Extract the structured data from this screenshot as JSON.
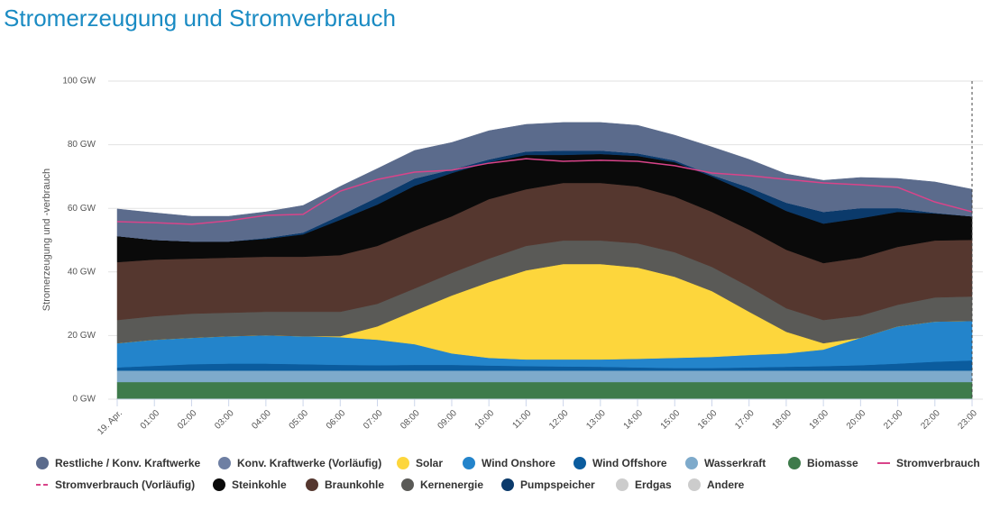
{
  "chart_data": {
    "type": "stacked_area",
    "title": "Stromerzeugung und Stromverbrauch",
    "y_label": "Stromerzeugung und -verbrauch",
    "categories": [
      "19. Apr.",
      "01:00",
      "02:00",
      "03:00",
      "04:00",
      "05:00",
      "06:00",
      "07:00",
      "08:00",
      "09:00",
      "10:00",
      "11:00",
      "12:00",
      "13:00",
      "14:00",
      "15:00",
      "16:00",
      "17:00",
      "18:00",
      "19:00",
      "20:00",
      "21:00",
      "22:00",
      "23:00"
    ],
    "ylim": [
      0,
      100
    ],
    "yticks": [
      {
        "value": 0,
        "label": "0 GW"
      },
      {
        "value": 20,
        "label": "20 GW"
      },
      {
        "value": 40,
        "label": "40 GW"
      },
      {
        "value": 60,
        "label": "60 GW"
      },
      {
        "value": 80,
        "label": "80 GW"
      },
      {
        "value": 100,
        "label": "100 GW"
      }
    ],
    "grid": true,
    "legend": "bottom",
    "series": [
      {
        "name": "Restliche / Konv. Kraftwerke",
        "color": "#5b6b8c",
        "kind": "area",
        "values": [
          8.5,
          8.5,
          7.9,
          7.9,
          8.2,
          8.5,
          9.1,
          9.0,
          8.8,
          8.5,
          9.0,
          8.5,
          8.8,
          8.8,
          8.8,
          7.9,
          8.8,
          8.8,
          9.0,
          9.9,
          9.6,
          9.3,
          9.7,
          8.5
        ]
      },
      {
        "name": "Konv. Kraftwerke (Vorläufig)",
        "color": "#6e7fa3",
        "kind": "area",
        "values": [
          0,
          0,
          0,
          0,
          0,
          0,
          0,
          0,
          0,
          0,
          0,
          0,
          0,
          0,
          0,
          0,
          0,
          0,
          0,
          0,
          0,
          0,
          0,
          0
        ]
      },
      {
        "name": "Solar",
        "color": "#fdd63c",
        "kind": "area",
        "values": [
          0,
          0,
          0,
          0,
          0,
          0,
          0.3,
          4.2,
          10.5,
          18.2,
          23.8,
          28.0,
          30.0,
          30.0,
          28.7,
          25.5,
          20.7,
          13.6,
          6.8,
          2.0,
          0,
          0,
          0,
          0
        ]
      },
      {
        "name": "Wind Onshore",
        "color": "#2384cb",
        "kind": "area",
        "values": [
          7.6,
          8.2,
          8.3,
          8.6,
          8.9,
          8.8,
          8.7,
          8.0,
          6.5,
          3.6,
          2.4,
          2.1,
          2.2,
          2.3,
          2.7,
          3.2,
          3.5,
          3.9,
          4.2,
          5.2,
          8.6,
          11.7,
          12.6,
          12.4
        ]
      },
      {
        "name": "Wind Offshore",
        "color": "#0b5c9e",
        "kind": "area",
        "values": [
          1.0,
          1.5,
          2.0,
          2.2,
          2.2,
          2.0,
          1.8,
          1.7,
          1.8,
          1.8,
          1.6,
          1.4,
          1.3,
          1.2,
          1.0,
          0.8,
          0.8,
          1.0,
          1.2,
          1.4,
          1.7,
          2.2,
          2.8,
          3.2
        ]
      },
      {
        "name": "Wasserkraft",
        "color": "#7eaacb",
        "kind": "area",
        "values": [
          3.6,
          3.6,
          3.6,
          3.6,
          3.6,
          3.6,
          3.6,
          3.6,
          3.6,
          3.6,
          3.6,
          3.6,
          3.6,
          3.6,
          3.6,
          3.6,
          3.6,
          3.6,
          3.6,
          3.6,
          3.6,
          3.6,
          3.6,
          3.6
        ]
      },
      {
        "name": "Biomasse",
        "color": "#3e7b4b",
        "kind": "area",
        "values": [
          5.4,
          5.4,
          5.4,
          5.4,
          5.4,
          5.4,
          5.4,
          5.4,
          5.4,
          5.4,
          5.4,
          5.4,
          5.4,
          5.4,
          5.4,
          5.4,
          5.4,
          5.4,
          5.4,
          5.4,
          5.4,
          5.4,
          5.4,
          5.4
        ]
      },
      {
        "name": "Stromverbrauch",
        "color": "#d9448a",
        "kind": "line",
        "values": [
          55.8,
          55.5,
          55.0,
          56.1,
          57.8,
          58.1,
          65.4,
          69.1,
          71.4,
          72.0,
          74.2,
          75.6,
          74.8,
          75.1,
          74.8,
          73.4,
          71.1,
          70.3,
          69.1,
          68.0,
          67.4,
          66.6,
          62.0,
          58.9
        ]
      },
      {
        "name": "Stromverbrauch (Vorläufig)",
        "color": "#d9448a",
        "kind": "line",
        "dashed": true,
        "values": [
          null,
          null,
          null,
          null,
          null,
          null,
          null,
          null,
          null,
          null,
          null,
          null,
          null,
          null,
          null,
          null,
          null,
          null,
          null,
          null,
          null,
          null,
          null,
          null
        ]
      },
      {
        "name": "Steinkohle",
        "color": "#0a0a0a",
        "kind": "area",
        "values": [
          8.2,
          6.2,
          5.4,
          5.1,
          5.6,
          7.0,
          11.1,
          13.0,
          14.1,
          13.6,
          11.6,
          10.8,
          8.8,
          9.1,
          9.6,
          10.8,
          11.1,
          11.6,
          12.2,
          12.4,
          12.4,
          11.0,
          8.5,
          7.4
        ]
      },
      {
        "name": "Braunkohle",
        "color": "#55372f",
        "kind": "area",
        "values": [
          18.2,
          17.8,
          17.3,
          17.3,
          17.3,
          17.3,
          17.8,
          18.2,
          18.2,
          17.8,
          18.7,
          17.8,
          18.1,
          18.1,
          17.9,
          17.5,
          17.3,
          17.9,
          18.4,
          17.9,
          18.2,
          18.2,
          17.9,
          17.8
        ]
      },
      {
        "name": "Kernenergie",
        "color": "#5a5a57",
        "kind": "area",
        "values": [
          7.3,
          7.4,
          7.6,
          7.4,
          7.4,
          7.7,
          7.7,
          7.1,
          7.0,
          7.1,
          7.4,
          7.7,
          7.4,
          7.4,
          7.6,
          7.7,
          7.6,
          7.9,
          7.4,
          7.3,
          7.0,
          6.8,
          7.6,
          7.7
        ]
      },
      {
        "name": "Pumpspeicher",
        "color": "#0b3a6b",
        "kind": "area",
        "values": [
          0,
          0,
          0,
          0,
          0.3,
          0.6,
          1.4,
          2.3,
          2.3,
          1.1,
          0.9,
          1.1,
          1.4,
          1.1,
          0.8,
          0.6,
          0.5,
          1.7,
          2.6,
          3.7,
          3.2,
          1.2,
          0.2,
          0
        ]
      },
      {
        "name": "Erdgas",
        "color": "#cccccc",
        "kind": "area",
        "visible": false,
        "values": [
          null,
          null,
          null,
          null,
          null,
          null,
          null,
          null,
          null,
          null,
          null,
          null,
          null,
          null,
          null,
          null,
          null,
          null,
          null,
          null,
          null,
          null,
          null,
          null
        ]
      },
      {
        "name": "Andere",
        "color": "#cccccc",
        "kind": "area",
        "visible": false,
        "values": [
          null,
          null,
          null,
          null,
          null,
          null,
          null,
          null,
          null,
          null,
          null,
          null,
          null,
          null,
          null,
          null,
          null,
          null,
          null,
          null,
          null,
          null,
          null,
          null
        ]
      }
    ]
  }
}
